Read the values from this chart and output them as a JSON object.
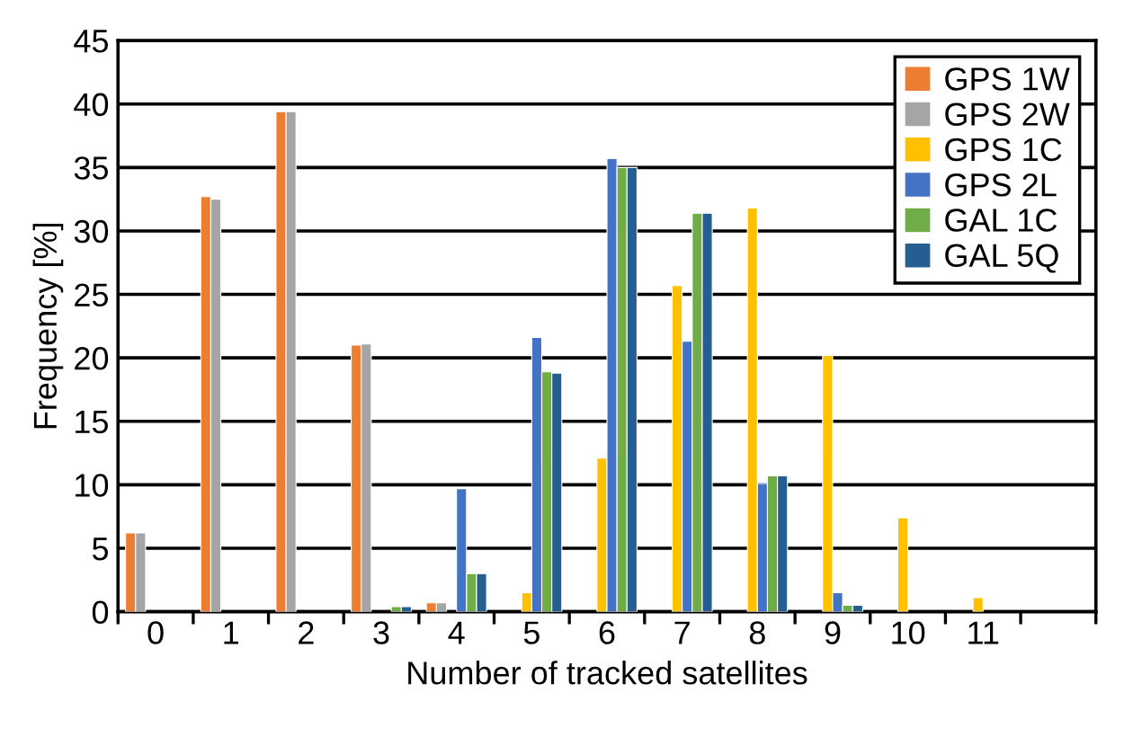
{
  "chart_data": {
    "type": "bar",
    "xlabel": "Number of tracked satellites",
    "ylabel": "Frequency [%]",
    "categories": [
      "0",
      "1",
      "2",
      "3",
      "4",
      "5",
      "6",
      "7",
      "8",
      "9",
      "10",
      "11",
      null
    ],
    "series": [
      {
        "name": "GPS 1W",
        "color": "#ed7d31",
        "values": [
          6.2,
          32.7,
          39.4,
          21.0,
          0.7,
          null,
          null,
          null,
          null,
          null,
          null,
          null,
          null
        ]
      },
      {
        "name": "GPS 2W",
        "color": "#a5a5a5",
        "values": [
          6.2,
          32.5,
          39.4,
          21.1,
          0.7,
          null,
          null,
          null,
          null,
          null,
          null,
          null,
          null
        ]
      },
      {
        "name": "GPS 1C",
        "color": "#ffc000",
        "values": [
          null,
          null,
          null,
          null,
          null,
          1.5,
          12.1,
          25.7,
          31.8,
          20.2,
          7.4,
          1.1,
          null
        ]
      },
      {
        "name": "GPS 2L",
        "color": "#4472c4",
        "values": [
          null,
          null,
          null,
          null,
          9.7,
          21.6,
          35.7,
          21.3,
          10.1,
          1.5,
          null,
          null,
          null
        ]
      },
      {
        "name": "GAL 1C",
        "color": "#70ad47",
        "values": [
          null,
          null,
          null,
          0.4,
          3.0,
          18.9,
          35.0,
          31.4,
          10.7,
          0.5,
          null,
          null,
          null
        ]
      },
      {
        "name": "GAL 5Q",
        "color": "#255e91",
        "values": [
          null,
          null,
          null,
          0.4,
          3.0,
          18.8,
          35.0,
          31.4,
          10.7,
          0.5,
          null,
          null,
          null
        ]
      }
    ],
    "ylim": [
      0,
      45
    ],
    "yticks": [
      0,
      5,
      10,
      15,
      20,
      25,
      30,
      35,
      40,
      45
    ],
    "grid": "y",
    "legend": "top right"
  }
}
